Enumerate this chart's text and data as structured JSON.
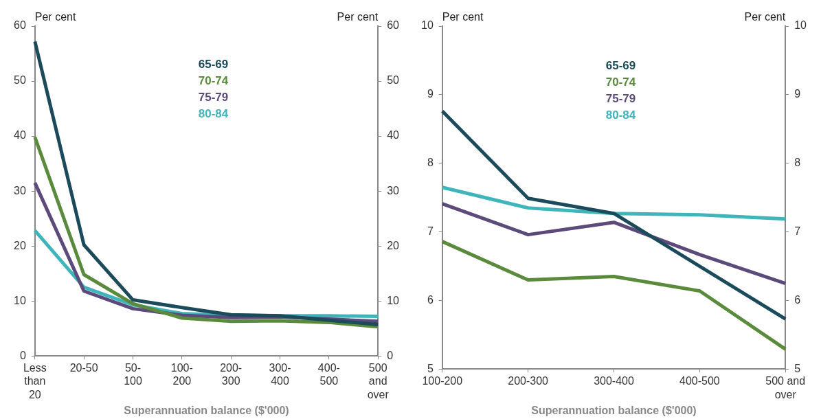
{
  "chart_data": [
    {
      "type": "line",
      "categories": [
        "Less than 20",
        "20-50",
        "50-100",
        "100-200",
        "200-300",
        "300-400",
        "400-500",
        "500 and over"
      ],
      "xlabel": "Superannuation balance ($'000)",
      "ylabel": "Per cent",
      "y2label": "Per cent",
      "ylim": [
        0,
        60
      ],
      "yticks": [
        0,
        10,
        20,
        30,
        40,
        50,
        60
      ],
      "y2lim": [
        0,
        60
      ],
      "y2ticks": [
        0,
        10,
        20,
        30,
        40,
        50,
        60
      ],
      "grid": false,
      "legend": "top",
      "marker": "none",
      "line_style": "solid",
      "series": [
        {
          "name": "65-69",
          "color": "#1b4a5a",
          "values": [
            57.2,
            20.2,
            10.2,
            8.8,
            7.5,
            7.3,
            6.5,
            5.7
          ]
        },
        {
          "name": "70-74",
          "color": "#5a8a3c",
          "values": [
            39.8,
            14.8,
            9.5,
            6.9,
            6.3,
            6.4,
            6.1,
            5.3
          ]
        },
        {
          "name": "75-79",
          "color": "#5b4a7a",
          "values": [
            31.5,
            11.8,
            8.6,
            7.4,
            7.0,
            7.1,
            6.7,
            6.3
          ]
        },
        {
          "name": "80-84",
          "color": "#3fb4bb",
          "values": [
            22.8,
            12.5,
            9.3,
            7.7,
            7.4,
            7.3,
            7.3,
            7.2
          ]
        }
      ]
    },
    {
      "type": "line",
      "categories": [
        "100-200",
        "200-300",
        "300-400",
        "400-500",
        "500 and over"
      ],
      "xlabel": "Superannuation balance ($'000)",
      "ylabel": "Per cent",
      "y2label": "Per cent",
      "ylim": [
        5,
        10
      ],
      "yticks": [
        5,
        6,
        7,
        8,
        9,
        10
      ],
      "y2lim": [
        5,
        10
      ],
      "y2ticks": [
        5,
        6,
        7,
        8,
        9,
        10
      ],
      "grid": false,
      "legend": "top",
      "marker": "none",
      "line_style": "solid",
      "series": [
        {
          "name": "65-69",
          "color": "#1b4a5a",
          "values": [
            8.76,
            7.49,
            7.27,
            6.5,
            5.73
          ]
        },
        {
          "name": "70-74",
          "color": "#5a8a3c",
          "values": [
            6.86,
            6.3,
            6.35,
            6.14,
            5.29
          ]
        },
        {
          "name": "75-79",
          "color": "#5b4a7a",
          "values": [
            7.41,
            6.96,
            7.14,
            6.67,
            6.25
          ]
        },
        {
          "name": "80-84",
          "color": "#3fb4bb",
          "values": [
            7.65,
            7.35,
            7.27,
            7.25,
            7.19
          ]
        }
      ]
    }
  ]
}
